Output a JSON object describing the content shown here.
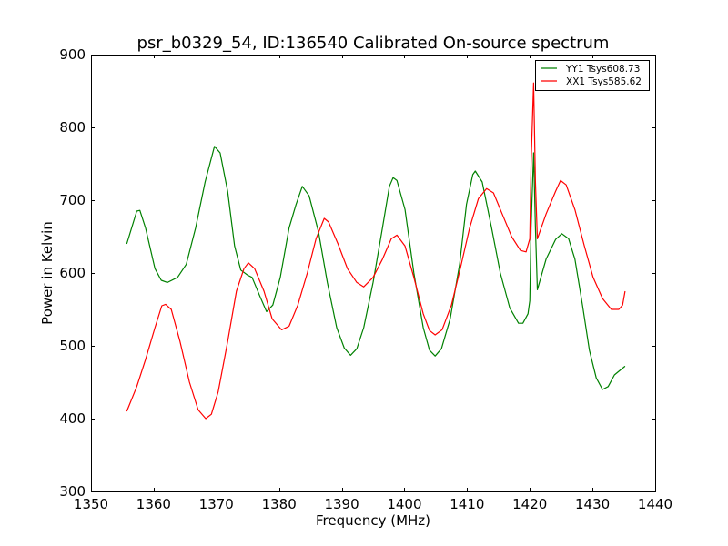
{
  "chart_data": {
    "type": "line",
    "title": "psr_b0329_54, ID:136540 Calibrated On-source spectrum",
    "xlabel": "Frequency (MHz)",
    "ylabel": "Power in Kelvin",
    "xlim": [
      1350,
      1440
    ],
    "ylim": [
      300,
      900
    ],
    "xticks": [
      1350,
      1360,
      1370,
      1380,
      1390,
      1400,
      1410,
      1420,
      1430,
      1440
    ],
    "yticks": [
      300,
      400,
      500,
      600,
      700,
      800,
      900
    ],
    "grid": false,
    "legend_position": "top-right",
    "series": [
      {
        "name": "YY1 Tsys608.73",
        "color": "#008000",
        "points": [
          [
            1355.7,
            640
          ],
          [
            1357.3,
            685
          ],
          [
            1357.8,
            686
          ],
          [
            1358.7,
            662
          ],
          [
            1360.2,
            606
          ],
          [
            1361.2,
            590
          ],
          [
            1362.2,
            587
          ],
          [
            1363.8,
            594
          ],
          [
            1365.2,
            612
          ],
          [
            1366.7,
            662
          ],
          [
            1368.2,
            725
          ],
          [
            1369.7,
            774
          ],
          [
            1370.6,
            765
          ],
          [
            1371.8,
            712
          ],
          [
            1372.9,
            637
          ],
          [
            1373.9,
            604
          ],
          [
            1375,
            597
          ],
          [
            1375.7,
            594
          ],
          [
            1376.9,
            569
          ],
          [
            1378,
            547
          ],
          [
            1379,
            556
          ],
          [
            1380.2,
            594
          ],
          [
            1381.6,
            662
          ],
          [
            1382.7,
            694
          ],
          [
            1383.7,
            719
          ],
          [
            1384.8,
            706
          ],
          [
            1386.3,
            656
          ],
          [
            1387.7,
            587
          ],
          [
            1389.2,
            525
          ],
          [
            1390.4,
            497
          ],
          [
            1391.4,
            487
          ],
          [
            1392.4,
            496
          ],
          [
            1393.5,
            525
          ],
          [
            1395,
            587
          ],
          [
            1396.5,
            662
          ],
          [
            1397.6,
            719
          ],
          [
            1398.2,
            731
          ],
          [
            1398.8,
            727
          ],
          [
            1400.1,
            687
          ],
          [
            1401.5,
            600
          ],
          [
            1403,
            525
          ],
          [
            1404,
            494
          ],
          [
            1404.9,
            486
          ],
          [
            1405.9,
            496
          ],
          [
            1407.3,
            537
          ],
          [
            1408.8,
            612
          ],
          [
            1409.9,
            694
          ],
          [
            1410.9,
            735
          ],
          [
            1411.3,
            740
          ],
          [
            1412.4,
            725
          ],
          [
            1413.9,
            662
          ],
          [
            1415.3,
            600
          ],
          [
            1416.8,
            552
          ],
          [
            1418.2,
            531
          ],
          [
            1418.9,
            531
          ],
          [
            1419.7,
            544
          ],
          [
            1420,
            562
          ],
          [
            1420.2,
            662
          ],
          [
            1420.6,
            765
          ],
          [
            1420.9,
            662
          ],
          [
            1421.2,
            577
          ],
          [
            1422.6,
            619
          ],
          [
            1424.1,
            646
          ],
          [
            1425.1,
            654
          ],
          [
            1426.2,
            647
          ],
          [
            1427.2,
            619
          ],
          [
            1428.4,
            556
          ],
          [
            1429.5,
            494
          ],
          [
            1430.6,
            456
          ],
          [
            1431.6,
            440
          ],
          [
            1432.5,
            444
          ],
          [
            1433.5,
            460
          ],
          [
            1435.2,
            472
          ]
        ]
      },
      {
        "name": "XX1 Tsys585.62",
        "color": "#ff0000",
        "points": [
          [
            1355.7,
            410
          ],
          [
            1357.3,
            444
          ],
          [
            1358.7,
            481
          ],
          [
            1360.2,
            525
          ],
          [
            1361.3,
            555
          ],
          [
            1361.9,
            557
          ],
          [
            1362.8,
            550
          ],
          [
            1364.2,
            506
          ],
          [
            1365.7,
            450
          ],
          [
            1367.1,
            412
          ],
          [
            1368.3,
            400
          ],
          [
            1369.2,
            406
          ],
          [
            1370.3,
            437
          ],
          [
            1371.8,
            506
          ],
          [
            1373.2,
            575
          ],
          [
            1374.4,
            606
          ],
          [
            1375.1,
            614
          ],
          [
            1376.1,
            606
          ],
          [
            1377.6,
            575
          ],
          [
            1378.9,
            537
          ],
          [
            1380.4,
            522
          ],
          [
            1381.6,
            527
          ],
          [
            1383,
            556
          ],
          [
            1384.5,
            600
          ],
          [
            1385.9,
            647
          ],
          [
            1387.2,
            675
          ],
          [
            1387.9,
            670
          ],
          [
            1389.4,
            640
          ],
          [
            1390.9,
            606
          ],
          [
            1392.4,
            587
          ],
          [
            1393.5,
            581
          ],
          [
            1395,
            594
          ],
          [
            1396.5,
            619
          ],
          [
            1397.9,
            647
          ],
          [
            1398.8,
            652
          ],
          [
            1400.1,
            637
          ],
          [
            1401.5,
            594
          ],
          [
            1403,
            544
          ],
          [
            1404,
            521
          ],
          [
            1404.9,
            515
          ],
          [
            1406,
            522
          ],
          [
            1407.5,
            556
          ],
          [
            1408.9,
            606
          ],
          [
            1410.4,
            662
          ],
          [
            1411.8,
            702
          ],
          [
            1413.1,
            716
          ],
          [
            1414.2,
            710
          ],
          [
            1415.6,
            681
          ],
          [
            1417.1,
            650
          ],
          [
            1418.5,
            631
          ],
          [
            1419.4,
            629
          ],
          [
            1420,
            647
          ],
          [
            1420.2,
            750
          ],
          [
            1420.6,
            861
          ],
          [
            1420.9,
            725
          ],
          [
            1421.2,
            647
          ],
          [
            1422.6,
            681
          ],
          [
            1424.1,
            712
          ],
          [
            1424.9,
            727
          ],
          [
            1425.8,
            721
          ],
          [
            1427.2,
            687
          ],
          [
            1428.7,
            637
          ],
          [
            1430.1,
            594
          ],
          [
            1431.6,
            565
          ],
          [
            1433,
            550
          ],
          [
            1434.2,
            550
          ],
          [
            1434.8,
            556
          ],
          [
            1435.2,
            575
          ]
        ]
      }
    ]
  }
}
